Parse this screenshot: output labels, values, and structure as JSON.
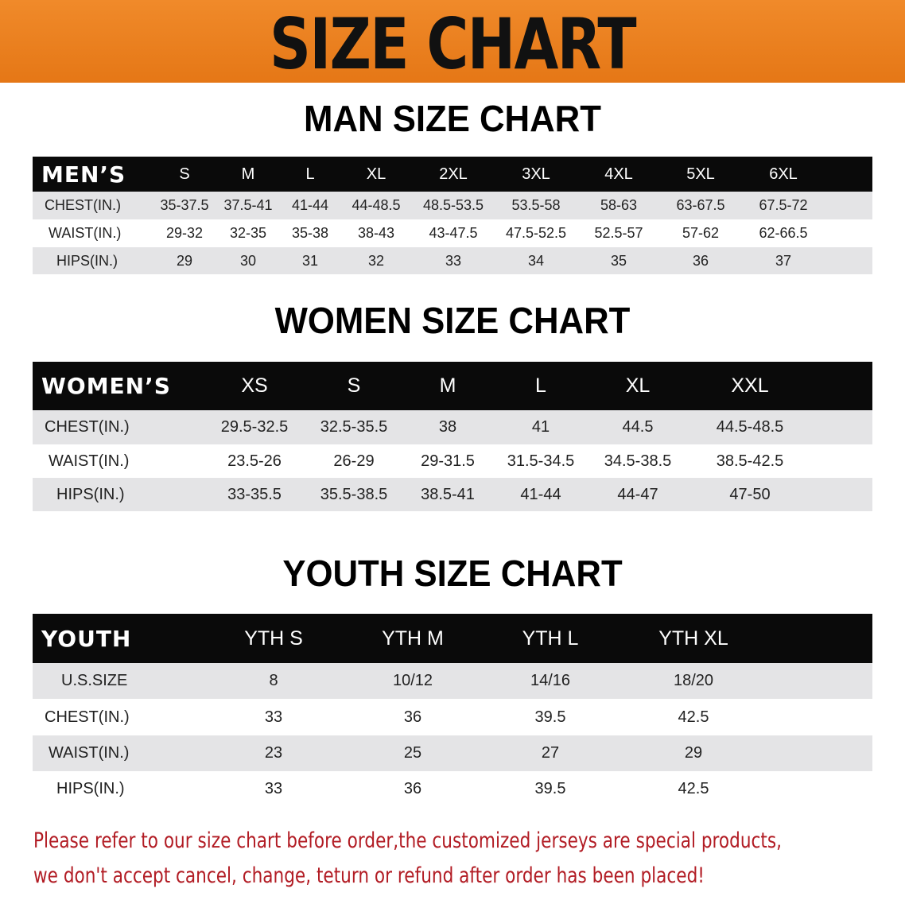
{
  "banner_title": "SIZE CHART",
  "men": {
    "title": "MAN SIZE CHART",
    "header_label": "MEN’S",
    "sizes": [
      "S",
      "M",
      "L",
      "XL",
      "2XL",
      "3XL",
      "4XL",
      "5XL",
      "6XL"
    ],
    "rows": [
      {
        "label": "CHEST(IN.)",
        "values": [
          "35-37.5",
          "37.5-41",
          "41-44",
          "44-48.5",
          "48.5-53.5",
          "53.5-58",
          "58-63",
          "63-67.5",
          "67.5-72"
        ]
      },
      {
        "label": "WAIST(IN.)",
        "values": [
          "29-32",
          "32-35",
          "35-38",
          "38-43",
          "43-47.5",
          "47.5-52.5",
          "52.5-57",
          "57-62",
          "62-66.5"
        ]
      },
      {
        "label": "HIPS(IN.)",
        "values": [
          "29",
          "30",
          "31",
          "32",
          "33",
          "34",
          "35",
          "36",
          "37"
        ]
      }
    ]
  },
  "women": {
    "title": "WOMEN SIZE CHART",
    "header_label": "WOMEN’S",
    "sizes": [
      "XS",
      "S",
      "M",
      "L",
      "XL",
      "XXL"
    ],
    "rows": [
      {
        "label": "CHEST(IN.)",
        "values": [
          "29.5-32.5",
          "32.5-35.5",
          "38",
          "41",
          "44.5",
          "44.5-48.5"
        ]
      },
      {
        "label": "WAIST(IN.)",
        "values": [
          "23.5-26",
          "26-29",
          "29-31.5",
          "31.5-34.5",
          "34.5-38.5",
          "38.5-42.5"
        ]
      },
      {
        "label": "HIPS(IN.)",
        "values": [
          "33-35.5",
          "35.5-38.5",
          "38.5-41",
          "41-44",
          "44-47",
          "47-50"
        ]
      }
    ]
  },
  "youth": {
    "title": "YOUTH SIZE CHART",
    "header_label": "YOUTH",
    "sizes": [
      "YTH S",
      "YTH M",
      "YTH L",
      "YTH XL"
    ],
    "rows": [
      {
        "label": "U.S.SIZE",
        "values": [
          "8",
          "10/12",
          "14/16",
          "18/20"
        ]
      },
      {
        "label": "CHEST(IN.)",
        "values": [
          "33",
          "36",
          "39.5",
          "42.5"
        ]
      },
      {
        "label": "WAIST(IN.)",
        "values": [
          "23",
          "25",
          "27",
          "29"
        ]
      },
      {
        "label": "HIPS(IN.)",
        "values": [
          "33",
          "36",
          "39.5",
          "42.5"
        ]
      }
    ]
  },
  "notice": {
    "line1": "Please refer to our size chart before order,the customized jerseys are special products,",
    "line2": "we don't accept cancel, change, teturn or refund after order has been placed!"
  },
  "colors": {
    "banner": "#e8801e",
    "header": "#0a0a0a",
    "row_alt": "#e4e4e6",
    "notice": "#b21c24"
  }
}
